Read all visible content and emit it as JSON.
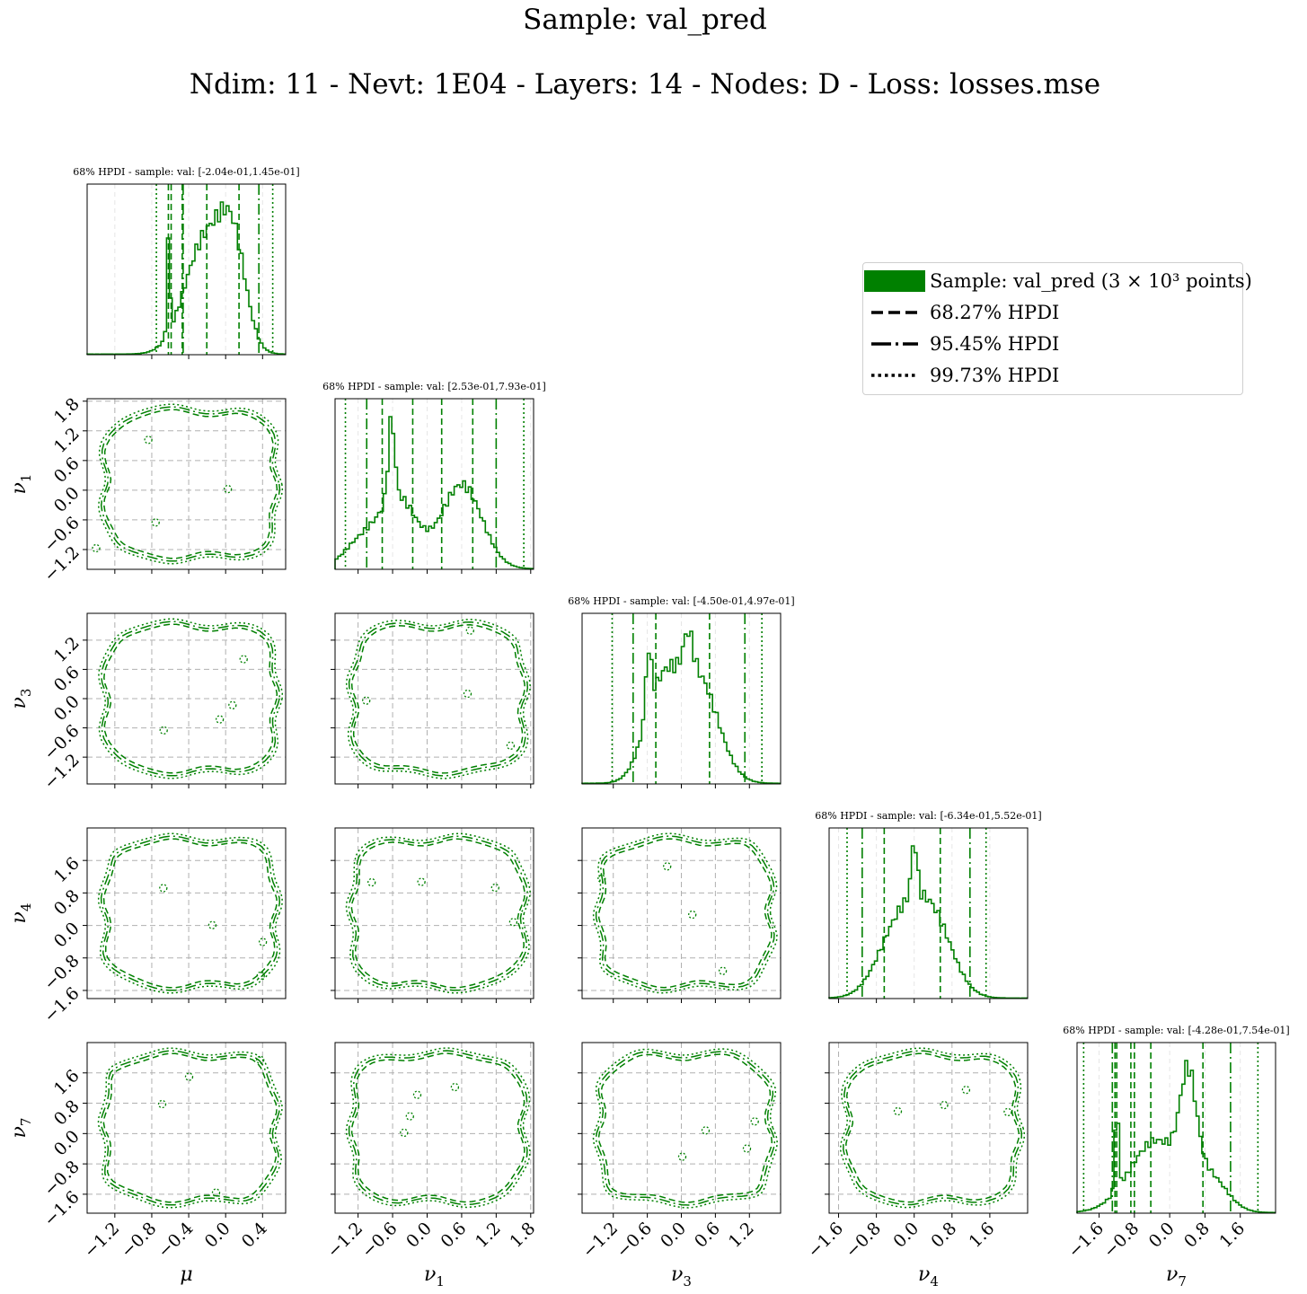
{
  "figure": {
    "title": "Sample:  val_pred",
    "subtitle": "Ndim:  11 - Nevt:  1E04 - Layers:  14 - Nodes:  D - Loss:  losses.mse",
    "color": "#008000",
    "grid_color": "#b0b0b0"
  },
  "legend": {
    "entries": [
      {
        "label": "Sample:  val_pred (3 × 10³ points)",
        "style": "patch"
      },
      {
        "label": "68.27% HPDI",
        "style": "dashed"
      },
      {
        "label": "95.45% HPDI",
        "style": "dashdot"
      },
      {
        "label": "99.73% HPDI",
        "style": "dotted"
      }
    ]
  },
  "chart_data": {
    "type": "corner",
    "parameters": [
      "μ",
      "ν1",
      "ν3",
      "ν4",
      "ν7"
    ],
    "axes": {
      "μ": {
        "range": [
          -1.5,
          0.65
        ],
        "ticks": [
          -1.2,
          -0.8,
          -0.4,
          0.0,
          0.4
        ]
      },
      "ν1": {
        "range": [
          -1.6,
          1.85
        ],
        "ticks": [
          -1.2,
          -0.6,
          0.0,
          0.6,
          1.2,
          1.8
        ]
      },
      "ν3": {
        "range": [
          -1.75,
          1.75
        ],
        "ticks": [
          -1.2,
          -0.6,
          0.0,
          0.6,
          1.2
        ]
      },
      "ν4": {
        "range": [
          -1.8,
          2.4
        ],
        "ticks": [
          -1.6,
          -0.8,
          0.0,
          0.8,
          1.6
        ]
      },
      "ν7": {
        "range": [
          -2.1,
          2.4
        ],
        "ticks": [
          -1.6,
          -0.8,
          0.0,
          0.8,
          1.6
        ]
      }
    },
    "y_tick_labels": {
      "ν1": [
        -1.2,
        -0.6,
        0.0,
        0.6,
        1.2,
        1.8
      ],
      "ν3": [
        -1.2,
        -0.6,
        0.0,
        0.6,
        1.2
      ],
      "ν4": [
        -1.6,
        -0.8,
        0.0,
        0.8,
        1.6
      ],
      "ν7": [
        -1.6,
        -0.8,
        0.0,
        0.8,
        1.6
      ]
    },
    "histograms": [
      {
        "param": "μ",
        "title": "68% HPDI - sample: val: [-2.04e-01,1.45e-01]",
        "hpdi68": [
          -0.204,
          0.145
        ],
        "hpdi68_extra": [
          -0.62,
          -0.59,
          -0.47
        ],
        "hpdi95": [
          -0.46,
          0.36
        ],
        "hpdi99": [
          -0.75,
          0.51
        ],
        "peaks": [
          {
            "mu": -0.63,
            "sd": 0.012,
            "h": 0.45
          },
          {
            "mu": -0.61,
            "sd": 0.012,
            "h": 0.45
          },
          {
            "mu": -0.22,
            "sd": 0.22,
            "h": 0.75
          },
          {
            "mu": 0.08,
            "sd": 0.14,
            "h": 0.6
          }
        ]
      },
      {
        "param": "ν1",
        "title": "68% HPDI - sample: val: [2.53e-01,7.93e-01]",
        "hpdi68": [
          0.253,
          0.793
        ],
        "hpdi68_extra": [
          -0.78,
          -0.25
        ],
        "hpdi95": [
          -1.05,
          1.2
        ],
        "hpdi99": [
          -1.42,
          1.68
        ],
        "peaks": [
          {
            "mu": -0.62,
            "sd": 0.055,
            "h": 0.55
          },
          {
            "mu": -0.5,
            "sd": 0.32,
            "h": 0.48
          },
          {
            "mu": 0.6,
            "sd": 0.35,
            "h": 0.58
          },
          {
            "mu": -1.15,
            "sd": 0.3,
            "h": 0.18
          }
        ]
      },
      {
        "param": "ν3",
        "title": "68% HPDI - sample: val: [-4.50e-01,4.97e-01]",
        "hpdi68": [
          -0.45,
          0.497
        ],
        "hpdi68_extra": [],
        "hpdi95": [
          -0.85,
          1.12
        ],
        "hpdi99": [
          -1.22,
          1.42
        ],
        "peaks": [
          {
            "mu": -0.58,
            "sd": 0.05,
            "h": 0.38
          },
          {
            "mu": -0.35,
            "sd": 0.3,
            "h": 0.55
          },
          {
            "mu": 0.12,
            "sd": 0.08,
            "h": 0.22
          },
          {
            "mu": 0.3,
            "sd": 0.35,
            "h": 0.62
          }
        ]
      },
      {
        "param": "ν4",
        "title": "68% HPDI - sample: val: [-6.34e-01,5.52e-01]",
        "hpdi68": [
          -0.634,
          0.552
        ],
        "hpdi68_extra": [],
        "hpdi95": [
          -1.1,
          1.18
        ],
        "hpdi99": [
          -1.42,
          1.52
        ],
        "peaks": [
          {
            "mu": 0.0,
            "sd": 0.06,
            "h": 0.42
          },
          {
            "mu": -0.3,
            "sd": 0.45,
            "h": 0.55
          },
          {
            "mu": 0.4,
            "sd": 0.42,
            "h": 0.55
          }
        ]
      },
      {
        "param": "ν7",
        "title": "68% HPDI - sample: val: [-4.28e-01,7.54e-01]",
        "hpdi68": [
          -0.428,
          0.754
        ],
        "hpdi68_extra": [
          -1.24,
          -1.2,
          -0.88,
          -0.8
        ],
        "hpdi95": [
          -1.3,
          1.38
        ],
        "hpdi99": [
          -1.95,
          2.0
        ],
        "peaks": [
          {
            "mu": -1.2,
            "sd": 0.04,
            "h": 0.55
          },
          {
            "mu": -0.3,
            "sd": 0.6,
            "h": 0.45
          },
          {
            "mu": 0.42,
            "sd": 0.18,
            "h": 0.6
          },
          {
            "mu": 0.9,
            "sd": 0.4,
            "h": 0.2
          }
        ]
      }
    ]
  }
}
